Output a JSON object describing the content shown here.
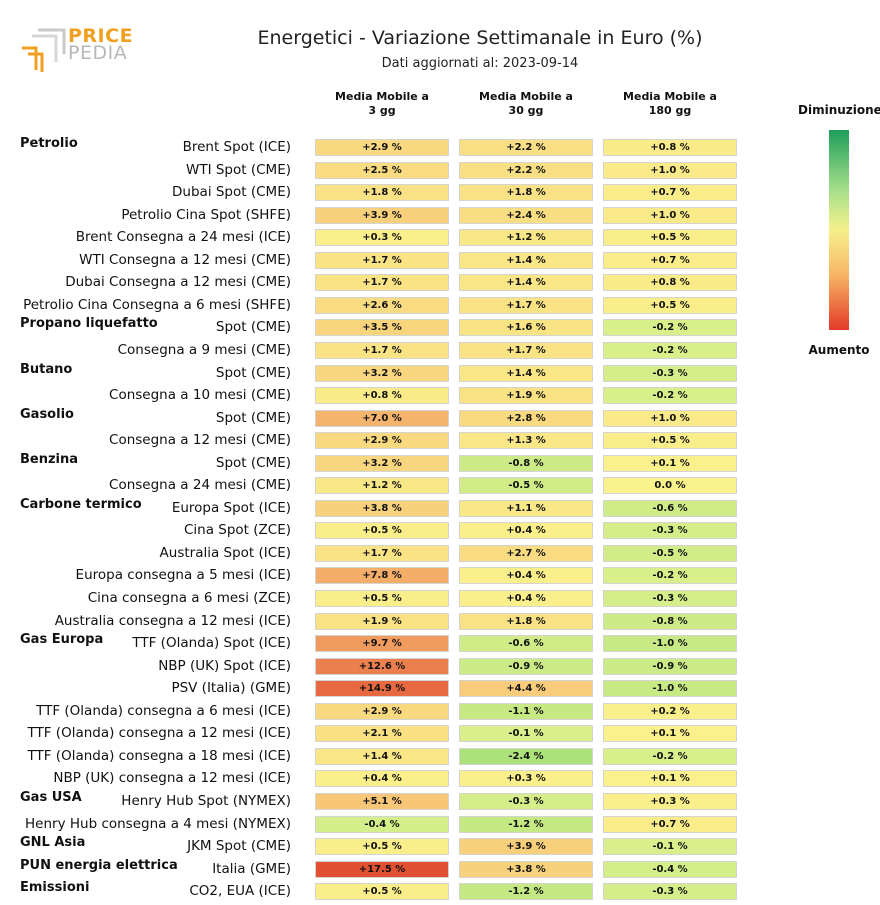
{
  "logo": {
    "word1": "PRICE",
    "word2": "PEDIA"
  },
  "chart_data": {
    "type": "table",
    "title": "Energetici - Variazione Settimanale in Euro (%)",
    "subtitle": "Dati aggiornati al: 2023-09-14",
    "columns": [
      "Media Mobile a\n3 gg",
      "Media Mobile a\n30 gg",
      "Media Mobile a\n180 gg"
    ],
    "legend": {
      "top_label": "Diminuzione",
      "bottom_label": "Aumento",
      "top_color": "#1e9e5a",
      "bottom_color": "#e43a26"
    },
    "rows": [
      {
        "group": "Petrolio",
        "label": "Brent Spot (ICE)",
        "values": [
          2.9,
          2.2,
          0.8
        ],
        "text": [
          "+2.9 %",
          "+2.2 %",
          "+0.8 %"
        ]
      },
      {
        "group": "",
        "label": "WTI Spot (CME)",
        "values": [
          2.5,
          2.2,
          1.0
        ],
        "text": [
          "+2.5 %",
          "+2.2 %",
          "+1.0 %"
        ]
      },
      {
        "group": "",
        "label": "Dubai Spot (CME)",
        "values": [
          1.8,
          1.8,
          0.7
        ],
        "text": [
          "+1.8 %",
          "+1.8 %",
          "+0.7 %"
        ]
      },
      {
        "group": "",
        "label": "Petrolio Cina Spot (SHFE)",
        "values": [
          3.9,
          2.4,
          1.0
        ],
        "text": [
          "+3.9 %",
          "+2.4 %",
          "+1.0 %"
        ]
      },
      {
        "group": "",
        "label": "Brent Consegna a 24 mesi (ICE)",
        "values": [
          0.3,
          1.2,
          0.5
        ],
        "text": [
          "+0.3 %",
          "+1.2 %",
          "+0.5 %"
        ]
      },
      {
        "group": "",
        "label": "WTI Consegna a 12 mesi (CME)",
        "values": [
          1.7,
          1.4,
          0.7
        ],
        "text": [
          "+1.7 %",
          "+1.4 %",
          "+0.7 %"
        ]
      },
      {
        "group": "",
        "label": "Dubai Consegna a 12 mesi (CME)",
        "values": [
          1.7,
          1.4,
          0.8
        ],
        "text": [
          "+1.7 %",
          "+1.4 %",
          "+0.8 %"
        ]
      },
      {
        "group": "",
        "label": "Petrolio Cina Consegna a 6 mesi (SHFE)",
        "values": [
          2.6,
          1.7,
          0.5
        ],
        "text": [
          "+2.6 %",
          "+1.7 %",
          "+0.5 %"
        ]
      },
      {
        "group": "Propano liquefatto",
        "label": "Spot (CME)",
        "values": [
          3.5,
          1.6,
          -0.2
        ],
        "text": [
          "+3.5 %",
          "+1.6 %",
          "-0.2 %"
        ]
      },
      {
        "group": "",
        "label": "Consegna a 9 mesi (CME)",
        "values": [
          1.7,
          1.7,
          -0.2
        ],
        "text": [
          "+1.7 %",
          "+1.7 %",
          "-0.2 %"
        ]
      },
      {
        "group": "Butano",
        "label": "Spot (CME)",
        "values": [
          3.2,
          1.4,
          -0.3
        ],
        "text": [
          "+3.2 %",
          "+1.4 %",
          "-0.3 %"
        ]
      },
      {
        "group": "",
        "label": "Consegna a 10 mesi (CME)",
        "values": [
          0.8,
          1.9,
          -0.2
        ],
        "text": [
          "+0.8 %",
          "+1.9 %",
          "-0.2 %"
        ]
      },
      {
        "group": "Gasolio",
        "label": "Spot (CME)",
        "values": [
          7.0,
          2.8,
          1.0
        ],
        "text": [
          "+7.0 %",
          "+2.8 %",
          "+1.0 %"
        ]
      },
      {
        "group": "",
        "label": "Consegna a 12 mesi (CME)",
        "values": [
          2.9,
          1.3,
          0.5
        ],
        "text": [
          "+2.9 %",
          "+1.3 %",
          "+0.5 %"
        ]
      },
      {
        "group": "Benzina",
        "label": "Spot (CME)",
        "values": [
          3.2,
          -0.8,
          0.1
        ],
        "text": [
          "+3.2 %",
          "-0.8 %",
          "+0.1 %"
        ]
      },
      {
        "group": "",
        "label": "Consegna a 24 mesi (CME)",
        "values": [
          1.2,
          -0.5,
          0.0
        ],
        "text": [
          "+1.2 %",
          "-0.5 %",
          "0.0 %"
        ]
      },
      {
        "group": "Carbone termico",
        "label": "Europa Spot (ICE)",
        "values": [
          3.8,
          1.1,
          -0.6
        ],
        "text": [
          "+3.8 %",
          "+1.1 %",
          "-0.6 %"
        ]
      },
      {
        "group": "",
        "label": "Cina Spot (ZCE)",
        "values": [
          0.5,
          0.4,
          -0.3
        ],
        "text": [
          "+0.5 %",
          "+0.4 %",
          "-0.3 %"
        ]
      },
      {
        "group": "",
        "label": "Australia Spot (ICE)",
        "values": [
          1.7,
          2.7,
          -0.5
        ],
        "text": [
          "+1.7 %",
          "+2.7 %",
          "-0.5 %"
        ]
      },
      {
        "group": "",
        "label": "Europa consegna a 5 mesi (ICE)",
        "values": [
          7.8,
          0.4,
          -0.2
        ],
        "text": [
          "+7.8 %",
          "+0.4 %",
          "-0.2 %"
        ]
      },
      {
        "group": "",
        "label": "Cina consegna a 6 mesi (ZCE)",
        "values": [
          0.5,
          0.4,
          -0.3
        ],
        "text": [
          "+0.5 %",
          "+0.4 %",
          "-0.3 %"
        ]
      },
      {
        "group": "",
        "label": "Australia consegna a 12 mesi (ICE)",
        "values": [
          1.9,
          1.8,
          -0.8
        ],
        "text": [
          "+1.9 %",
          "+1.8 %",
          "-0.8 %"
        ]
      },
      {
        "group": "Gas Europa",
        "label": "TTF (Olanda) Spot (ICE)",
        "values": [
          9.7,
          -0.6,
          -1.0
        ],
        "text": [
          "+9.7 %",
          "-0.6 %",
          "-1.0 %"
        ]
      },
      {
        "group": "",
        "label": "NBP (UK) Spot (ICE)",
        "values": [
          12.6,
          -0.9,
          -0.9
        ],
        "text": [
          "+12.6 %",
          "-0.9 %",
          "-0.9 %"
        ]
      },
      {
        "group": "",
        "label": "PSV (Italia) (GME)",
        "values": [
          14.9,
          4.4,
          -1.0
        ],
        "text": [
          "+14.9 %",
          "+4.4 %",
          "-1.0 %"
        ]
      },
      {
        "group": "",
        "label": "TTF (Olanda) consegna a 6 mesi (ICE)",
        "values": [
          2.9,
          -1.1,
          0.2
        ],
        "text": [
          "+2.9 %",
          "-1.1 %",
          "+0.2 %"
        ]
      },
      {
        "group": "",
        "label": "TTF (Olanda) consegna a 12 mesi (ICE)",
        "values": [
          2.1,
          -0.1,
          0.1
        ],
        "text": [
          "+2.1 %",
          "-0.1 %",
          "+0.1 %"
        ]
      },
      {
        "group": "",
        "label": "TTF (Olanda) consegna a 18 mesi (ICE)",
        "values": [
          1.4,
          -2.4,
          -0.2
        ],
        "text": [
          "+1.4 %",
          "-2.4 %",
          "-0.2 %"
        ]
      },
      {
        "group": "",
        "label": "NBP (UK) consegna a 12 mesi (ICE)",
        "values": [
          0.4,
          0.3,
          0.1
        ],
        "text": [
          "+0.4 %",
          "+0.3 %",
          "+0.1 %"
        ]
      },
      {
        "group": "Gas USA",
        "label": "Henry Hub Spot (NYMEX)",
        "values": [
          5.1,
          -0.3,
          0.3
        ],
        "text": [
          "+5.1 %",
          "-0.3 %",
          "+0.3 %"
        ]
      },
      {
        "group": "",
        "label": "Henry Hub consegna a 4 mesi (NYMEX)",
        "values": [
          -0.4,
          -1.2,
          0.7
        ],
        "text": [
          "-0.4 %",
          "-1.2 %",
          "+0.7 %"
        ]
      },
      {
        "group": "GNL Asia",
        "label": "JKM Spot (CME)",
        "values": [
          0.5,
          3.9,
          -0.1
        ],
        "text": [
          "+0.5 %",
          "+3.9 %",
          "-0.1 %"
        ]
      },
      {
        "group": "PUN energia elettrica",
        "label": "Italia (GME)",
        "values": [
          17.5,
          3.8,
          -0.4
        ],
        "text": [
          "+17.5 %",
          "+3.8 %",
          "-0.4 %"
        ]
      },
      {
        "group": "Emissioni",
        "label": "CO2, EUA (ICE)",
        "values": [
          0.5,
          -1.2,
          -0.3
        ],
        "text": [
          "+0.5 %",
          "-1.2 %",
          "-0.3 %"
        ]
      }
    ]
  }
}
